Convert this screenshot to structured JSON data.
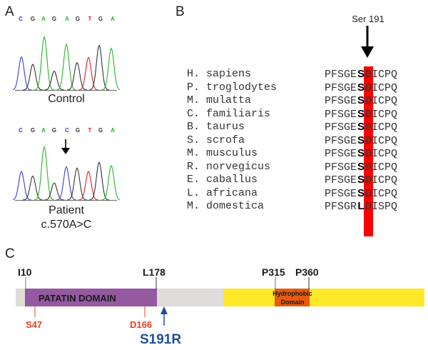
{
  "panelA": {
    "letter": "A",
    "control": {
      "bases": [
        {
          "b": "C",
          "color": "#3a3adf"
        },
        {
          "b": "G",
          "color": "#333333"
        },
        {
          "b": "A",
          "color": "#22b922"
        },
        {
          "b": "G",
          "color": "#333333"
        },
        {
          "b": "A",
          "color": "#22b922"
        },
        {
          "b": "G",
          "color": "#333333"
        },
        {
          "b": "T",
          "color": "#e02020"
        },
        {
          "b": "G",
          "color": "#333333"
        },
        {
          "b": "A",
          "color": "#22b922"
        }
      ],
      "peak_heights": [
        0.58,
        0.45,
        0.93,
        0.33,
        0.8,
        0.48,
        0.57,
        0.78,
        0.73
      ],
      "label": "Control"
    },
    "patient": {
      "bases": [
        {
          "b": "C",
          "color": "#3a3adf"
        },
        {
          "b": "G",
          "color": "#333333"
        },
        {
          "b": "A",
          "color": "#22b922"
        },
        {
          "b": "G",
          "color": "#333333"
        },
        {
          "b": "C",
          "color": "#3a3adf"
        },
        {
          "b": "G",
          "color": "#333333"
        },
        {
          "b": "T",
          "color": "#e02020"
        },
        {
          "b": "G",
          "color": "#333333"
        },
        {
          "b": "A",
          "color": "#22b922"
        }
      ],
      "peak_heights": [
        0.5,
        0.42,
        0.93,
        0.3,
        0.58,
        0.56,
        0.5,
        0.66,
        0.6
      ],
      "mutation_index": 4,
      "label": "Patient",
      "variant": "c.570A>C"
    }
  },
  "panelB": {
    "letter": "B",
    "arrow_label": "Ser 191",
    "highlight_color": "#ff0000",
    "rows": [
      {
        "species": "H. sapiens",
        "pre": "PFSGE",
        "res": "S",
        "post": "DICPQ"
      },
      {
        "species": "P. troglodytes",
        "pre": "PFSGE",
        "res": "S",
        "post": "DICPQ"
      },
      {
        "species": "M. mulatta",
        "pre": "PFSGE",
        "res": "S",
        "post": "DICPQ"
      },
      {
        "species": "C. familiaris",
        "pre": "PFSGE",
        "res": "S",
        "post": "DICPQ"
      },
      {
        "species": "B. taurus",
        "pre": "PFSGE",
        "res": "S",
        "post": "DICPQ"
      },
      {
        "species": "S. scrofa",
        "pre": "PFSGE",
        "res": "S",
        "post": "DICPQ"
      },
      {
        "species": "M. musculus",
        "pre": "PFSGE",
        "res": "S",
        "post": "DICPQ"
      },
      {
        "species": "R. norvegicus",
        "pre": "PFSGE",
        "res": "S",
        "post": "DICPQ"
      },
      {
        "species": "E. caballus",
        "pre": "PFSGE",
        "res": "S",
        "post": "DICPQ"
      },
      {
        "species": "L. africana",
        "pre": "PFSGE",
        "res": "S",
        "post": "DICPQ"
      },
      {
        "species": "M. domestica",
        "pre": "PFSGR",
        "res": "L",
        "post": "DISPQ"
      }
    ]
  },
  "panelC": {
    "letter": "C",
    "domain_label": "PATATIN DOMAIN",
    "hydrophobic_label_line1": "Hydrophobic",
    "hydrophobic_label_line2": "Domain",
    "markers_top": [
      "I10",
      "L178",
      "P315",
      "P360"
    ],
    "sites": [
      "S47",
      "D166"
    ],
    "mutation": "S191R",
    "colors": {
      "backbone": "#dedbd8",
      "patatin": "#9459a1",
      "c_terminal": "#ffe829",
      "hydrophobic": "#e85a0c",
      "site": "#e8401c",
      "mutation": "#1f4e9c"
    }
  }
}
